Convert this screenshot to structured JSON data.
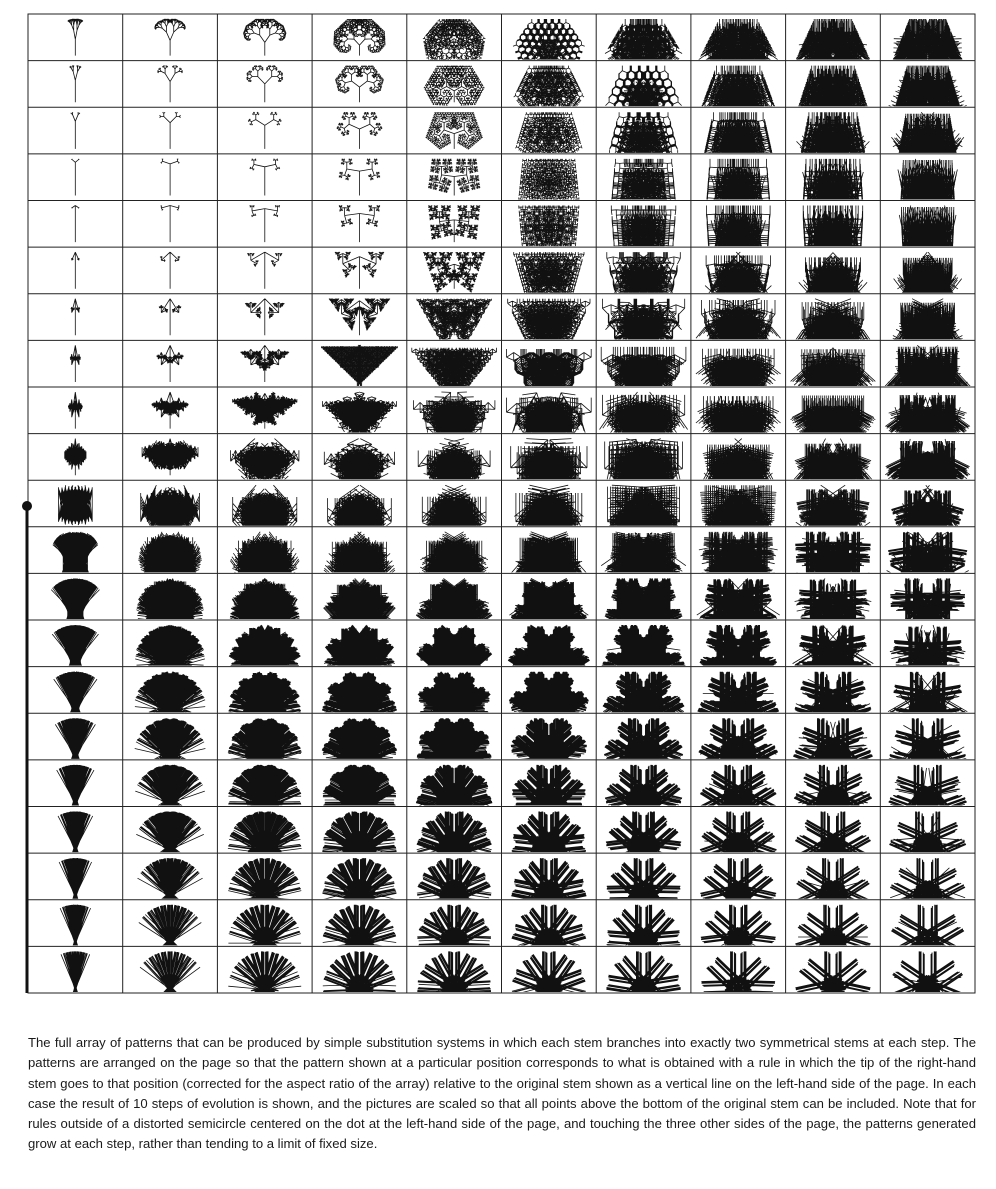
{
  "figure": {
    "description_kind": "grid of substitution-system branching patterns",
    "rows": 21,
    "columns": 10,
    "steps_of_evolution": 10,
    "colors": {
      "ink": "#111111",
      "grid": "#222222",
      "background": "#ffffff"
    }
  },
  "caption": {
    "text": "The full array of patterns that can be produced by simple substitution systems in which each stem branches into exactly two symmetrical stems at each step. The patterns are arranged on the page so that the pattern shown at a particular position corresponds to what is obtained with a rule in which the tip of the right-hand stem goes to that position (corrected for the aspect ratio of the array) relative to the original stem shown as a vertical line on the left-hand side of the page. In each case the result of 10 steps of evolution is shown, and the pictures are scaled so that all points above the bottom of the original stem can be included. Note that for rules outside of a distorted semicircle centered on the dot at the left-hand side of the page, and touching the three other sides of the page, the patterns generated grow at each step, rather than tending to a limit of fixed size."
  }
}
